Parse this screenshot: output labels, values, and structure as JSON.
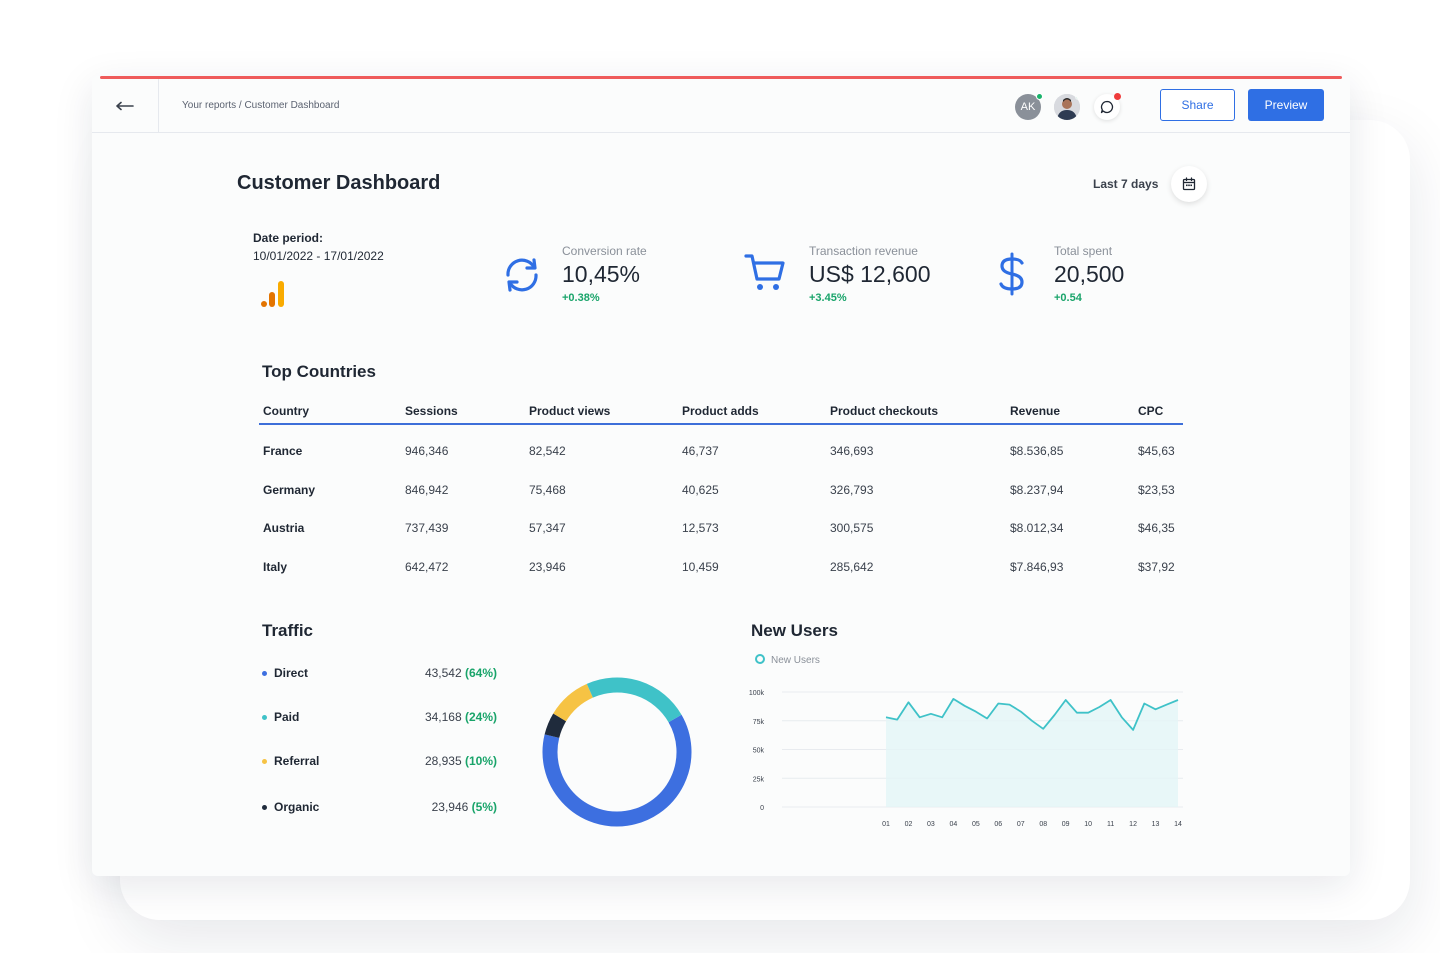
{
  "header": {
    "breadcrumb": "Your reports / Customer Dashboard",
    "avatar_initials": "AK",
    "share_label": "Share",
    "preview_label": "Preview"
  },
  "page": {
    "title": "Customer Dashboard",
    "date_range_label": "Last 7 days"
  },
  "period": {
    "label": "Date period:",
    "value": "10/01/2022 - 17/01/2022"
  },
  "kpis": [
    {
      "label": "Conversion rate",
      "value": "10,45%",
      "delta": "+0.38%",
      "icon": "refresh-icon"
    },
    {
      "label": "Transaction revenue",
      "value": "US$ 12,600",
      "delta": "+3.45%",
      "icon": "cart-icon"
    },
    {
      "label": "Total spent",
      "value": "20,500",
      "delta": "+0.54",
      "icon": "dollar-icon"
    }
  ],
  "top_countries": {
    "title": "Top Countries",
    "columns": [
      "Country",
      "Sessions",
      "Product views",
      "Product adds",
      "Product checkouts",
      "Revenue",
      "CPC"
    ],
    "rows": [
      [
        "France",
        "946,346",
        "82,542",
        "46,737",
        "346,693",
        "$8.536,85",
        "$45,63"
      ],
      [
        "Germany",
        "846,942",
        "75,468",
        "40,625",
        "326,793",
        "$8.237,94",
        "$23,53"
      ],
      [
        "Austria",
        "737,439",
        "57,347",
        "12,573",
        "300,575",
        "$8.012,34",
        "$46,35"
      ],
      [
        "Italy",
        "642,472",
        "23,946",
        "10,459",
        "285,642",
        "$7.846,93",
        "$37,92"
      ]
    ]
  },
  "traffic": {
    "title": "Traffic",
    "items": [
      {
        "name": "Direct",
        "value": "43,542",
        "pct": "(64%)",
        "color": "#3d6fe0",
        "share": 64
      },
      {
        "name": "Paid",
        "value": "34,168",
        "pct": "(24%)",
        "color": "#3fc2c8",
        "share": 24
      },
      {
        "name": "Referral",
        "value": "28,935",
        "pct": "(10%)",
        "color": "#f6c344",
        "share": 10
      },
      {
        "name": "Organic",
        "value": "23,946",
        "pct": "(5%)",
        "color": "#1f2b3c",
        "share": 5
      }
    ]
  },
  "new_users": {
    "title": "New Users",
    "legend": "New Users"
  },
  "chart_data": {
    "type": "area",
    "x": [
      "01",
      "02",
      "03",
      "04",
      "05",
      "06",
      "07",
      "08",
      "09",
      "10",
      "11",
      "12",
      "13",
      "14"
    ],
    "y_ticks": [
      "100k",
      "75k",
      "50k",
      "25k",
      "0"
    ],
    "ylim": [
      0,
      100000
    ],
    "series": [
      {
        "name": "New Users",
        "color": "#3fc2c8",
        "points": [
          [
            1,
            78000
          ],
          [
            1.5,
            76000
          ],
          [
            2,
            91000
          ],
          [
            2.5,
            78000
          ],
          [
            3,
            81000
          ],
          [
            3.5,
            78000
          ],
          [
            4,
            94000
          ],
          [
            4.5,
            88000
          ],
          [
            5,
            83000
          ],
          [
            5.5,
            77000
          ],
          [
            6,
            90000
          ],
          [
            6.5,
            89000
          ],
          [
            7,
            83000
          ],
          [
            7.5,
            75000
          ],
          [
            8,
            68000
          ],
          [
            8.5,
            80000
          ],
          [
            9,
            93000
          ],
          [
            9.5,
            82000
          ],
          [
            10,
            82000
          ],
          [
            10.5,
            87000
          ],
          [
            11,
            93000
          ],
          [
            11.5,
            78000
          ],
          [
            12,
            67000
          ],
          [
            12.5,
            90000
          ],
          [
            13,
            85000
          ],
          [
            13.5,
            89000
          ],
          [
            14,
            93000
          ]
        ]
      }
    ]
  }
}
